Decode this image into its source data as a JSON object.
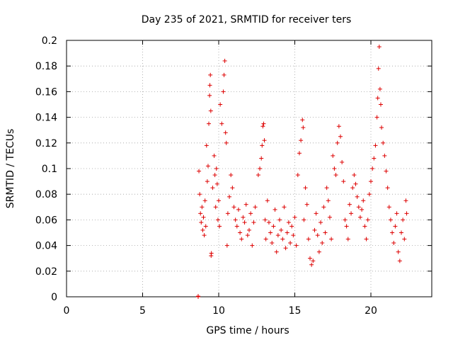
{
  "chart_data": {
    "type": "scatter",
    "title": "Day 235 of 2021, SRMTID for receiver ters",
    "xlabel": "GPS time / hours",
    "ylabel": "SRMTID / TECUs",
    "xlim": [
      0,
      24
    ],
    "ylim": [
      0,
      0.2
    ],
    "xticks": [
      0,
      5,
      10,
      15,
      20
    ],
    "yticks": [
      0,
      0.02,
      0.04,
      0.06,
      0.08,
      0.1,
      0.12,
      0.14,
      0.16,
      0.18,
      0.2
    ],
    "xtick_labels": [
      "0",
      "5",
      "10",
      "15",
      "20"
    ],
    "ytick_labels": [
      "0",
      "0.02",
      "0.04",
      "0.06",
      "0.08",
      "0.1",
      "0.12",
      "0.14",
      "0.16",
      "0.18",
      "0.2"
    ],
    "grid": true,
    "marker": "+",
    "color": "#dd0000",
    "series": [
      {
        "values": [
          [
            8.65,
            0.0
          ],
          [
            8.65,
            0.0005
          ],
          [
            8.7,
            0.098
          ],
          [
            8.75,
            0.08
          ],
          [
            8.8,
            0.065
          ],
          [
            8.85,
            0.058
          ],
          [
            8.9,
            0.07
          ],
          [
            8.95,
            0.052
          ],
          [
            9.0,
            0.062
          ],
          [
            9.05,
            0.048
          ],
          [
            9.1,
            0.075
          ],
          [
            9.15,
            0.055
          ],
          [
            9.2,
            0.118
          ],
          [
            9.25,
            0.09
          ],
          [
            9.3,
            0.102
          ],
          [
            9.35,
            0.135
          ],
          [
            9.4,
            0.157
          ],
          [
            9.42,
            0.165
          ],
          [
            9.45,
            0.173
          ],
          [
            9.48,
            0.145
          ],
          [
            9.5,
            0.032
          ],
          [
            9.52,
            0.034
          ],
          [
            9.6,
            0.085
          ],
          [
            9.7,
            0.11
          ],
          [
            9.75,
            0.095
          ],
          [
            9.8,
            0.07
          ],
          [
            9.85,
            0.1
          ],
          [
            9.9,
            0.088
          ],
          [
            9.95,
            0.06
          ],
          [
            10.0,
            0.075
          ],
          [
            10.05,
            0.055
          ],
          [
            10.1,
            0.15
          ],
          [
            10.2,
            0.135
          ],
          [
            10.3,
            0.16
          ],
          [
            10.35,
            0.173
          ],
          [
            10.4,
            0.184
          ],
          [
            10.45,
            0.128
          ],
          [
            10.5,
            0.12
          ],
          [
            10.55,
            0.04
          ],
          [
            10.6,
            0.065
          ],
          [
            10.7,
            0.078
          ],
          [
            10.8,
            0.095
          ],
          [
            10.9,
            0.085
          ],
          [
            11.0,
            0.07
          ],
          [
            11.1,
            0.06
          ],
          [
            11.2,
            0.055
          ],
          [
            11.3,
            0.068
          ],
          [
            11.4,
            0.05
          ],
          [
            11.5,
            0.045
          ],
          [
            11.6,
            0.062
          ],
          [
            11.7,
            0.058
          ],
          [
            11.8,
            0.072
          ],
          [
            11.9,
            0.048
          ],
          [
            12.0,
            0.052
          ],
          [
            12.1,
            0.065
          ],
          [
            12.2,
            0.04
          ],
          [
            12.3,
            0.058
          ],
          [
            12.4,
            0.07
          ],
          [
            12.6,
            0.095
          ],
          [
            12.7,
            0.1
          ],
          [
            12.8,
            0.108
          ],
          [
            12.85,
            0.118
          ],
          [
            12.9,
            0.133
          ],
          [
            12.95,
            0.135
          ],
          [
            13.0,
            0.122
          ],
          [
            13.05,
            0.06
          ],
          [
            13.1,
            0.045
          ],
          [
            13.2,
            0.075
          ],
          [
            13.3,
            0.058
          ],
          [
            13.4,
            0.05
          ],
          [
            13.5,
            0.042
          ],
          [
            13.6,
            0.055
          ],
          [
            13.7,
            0.068
          ],
          [
            13.8,
            0.035
          ],
          [
            13.9,
            0.048
          ],
          [
            14.0,
            0.06
          ],
          [
            14.1,
            0.052
          ],
          [
            14.2,
            0.045
          ],
          [
            14.3,
            0.07
          ],
          [
            14.4,
            0.038
          ],
          [
            14.5,
            0.05
          ],
          [
            14.6,
            0.058
          ],
          [
            14.7,
            0.042
          ],
          [
            14.8,
            0.055
          ],
          [
            14.9,
            0.048
          ],
          [
            15.0,
            0.062
          ],
          [
            15.1,
            0.04
          ],
          [
            15.2,
            0.095
          ],
          [
            15.3,
            0.112
          ],
          [
            15.4,
            0.122
          ],
          [
            15.5,
            0.138
          ],
          [
            15.55,
            0.132
          ],
          [
            15.6,
            0.06
          ],
          [
            15.7,
            0.085
          ],
          [
            15.8,
            0.072
          ],
          [
            15.9,
            0.045
          ],
          [
            16.0,
            0.03
          ],
          [
            16.1,
            0.025
          ],
          [
            16.2,
            0.028
          ],
          [
            16.3,
            0.052
          ],
          [
            16.4,
            0.065
          ],
          [
            16.5,
            0.048
          ],
          [
            16.6,
            0.035
          ],
          [
            16.7,
            0.058
          ],
          [
            16.8,
            0.042
          ],
          [
            16.9,
            0.07
          ],
          [
            17.0,
            0.05
          ],
          [
            17.1,
            0.085
          ],
          [
            17.2,
            0.075
          ],
          [
            17.3,
            0.062
          ],
          [
            17.4,
            0.045
          ],
          [
            17.5,
            0.11
          ],
          [
            17.6,
            0.1
          ],
          [
            17.7,
            0.095
          ],
          [
            17.8,
            0.12
          ],
          [
            17.9,
            0.133
          ],
          [
            18.0,
            0.125
          ],
          [
            18.1,
            0.105
          ],
          [
            18.2,
            0.09
          ],
          [
            18.3,
            0.06
          ],
          [
            18.4,
            0.055
          ],
          [
            18.5,
            0.045
          ],
          [
            18.6,
            0.072
          ],
          [
            18.7,
            0.065
          ],
          [
            18.8,
            0.085
          ],
          [
            18.9,
            0.095
          ],
          [
            19.0,
            0.088
          ],
          [
            19.1,
            0.078
          ],
          [
            19.2,
            0.07
          ],
          [
            19.3,
            0.062
          ],
          [
            19.4,
            0.068
          ],
          [
            19.5,
            0.075
          ],
          [
            19.6,
            0.055
          ],
          [
            19.7,
            0.045
          ],
          [
            19.8,
            0.06
          ],
          [
            19.9,
            0.08
          ],
          [
            20.0,
            0.09
          ],
          [
            20.1,
            0.1
          ],
          [
            20.2,
            0.108
          ],
          [
            20.3,
            0.118
          ],
          [
            20.4,
            0.14
          ],
          [
            20.45,
            0.155
          ],
          [
            20.5,
            0.178
          ],
          [
            20.55,
            0.195
          ],
          [
            20.6,
            0.162
          ],
          [
            20.65,
            0.15
          ],
          [
            20.7,
            0.132
          ],
          [
            20.8,
            0.12
          ],
          [
            20.9,
            0.11
          ],
          [
            21.0,
            0.098
          ],
          [
            21.1,
            0.085
          ],
          [
            21.2,
            0.07
          ],
          [
            21.3,
            0.06
          ],
          [
            21.4,
            0.05
          ],
          [
            21.5,
            0.042
          ],
          [
            21.6,
            0.055
          ],
          [
            21.7,
            0.065
          ],
          [
            21.8,
            0.035
          ],
          [
            21.9,
            0.028
          ],
          [
            22.0,
            0.05
          ],
          [
            22.1,
            0.06
          ],
          [
            22.2,
            0.045
          ],
          [
            22.3,
            0.075
          ],
          [
            22.35,
            0.065
          ]
        ]
      }
    ]
  }
}
